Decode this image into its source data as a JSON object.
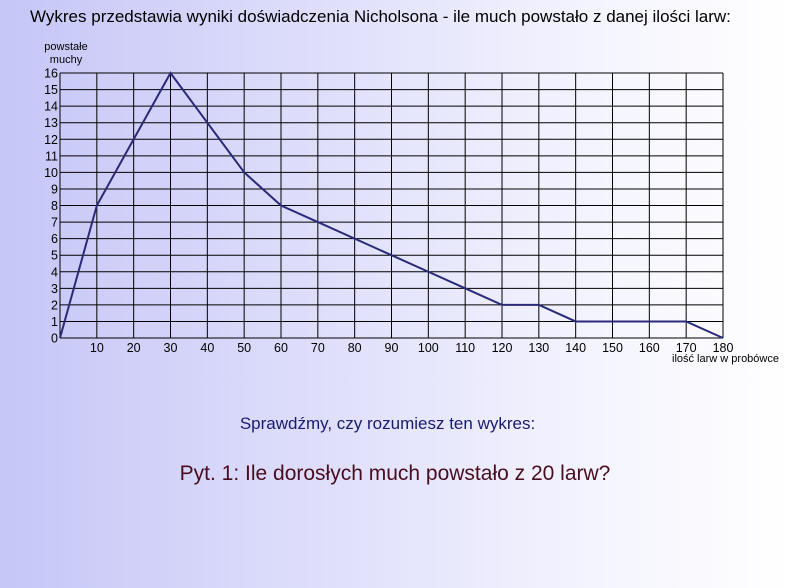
{
  "title": "Wykres przedstawia wyniki doświadczenia Nicholsona - ile much powstało z danej ilości larw:",
  "chart_data": {
    "type": "line",
    "ylabel_line1": "powstałe",
    "ylabel_line2": "muchy",
    "xlabel": "ilość larw w probówce",
    "xlim": [
      0,
      180
    ],
    "ylim": [
      0,
      16
    ],
    "x_ticks": [
      10,
      20,
      30,
      40,
      50,
      60,
      70,
      80,
      90,
      100,
      110,
      120,
      130,
      140,
      150,
      160,
      170,
      180
    ],
    "y_ticks": [
      0,
      1,
      2,
      3,
      4,
      5,
      6,
      7,
      8,
      9,
      10,
      11,
      12,
      13,
      14,
      15,
      16
    ],
    "grid": true,
    "line_color": "#2a2a78",
    "x": [
      0,
      10,
      20,
      30,
      40,
      50,
      60,
      70,
      80,
      90,
      100,
      110,
      120,
      130,
      140,
      150,
      160,
      170,
      180
    ],
    "y": [
      0,
      8,
      12,
      16,
      13,
      10,
      8,
      7,
      6,
      5,
      4,
      3,
      2,
      2,
      1,
      1,
      1,
      1,
      0
    ]
  },
  "subtitle": "Sprawdźmy, czy rozumiesz ten wykres:",
  "question": "Pyt. 1:  Ile dorosłych much powstało z 20 larw?"
}
